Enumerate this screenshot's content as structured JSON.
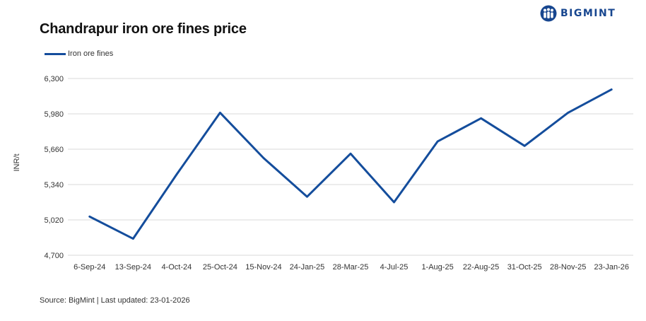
{
  "brand": {
    "name": "BIGMINT"
  },
  "chart_data": {
    "type": "line",
    "title": "Chandrapur iron ore fines price",
    "xlabel": "",
    "ylabel": "INR/t",
    "categories": [
      "6-Sep-24",
      "13-Sep-24",
      "4-Oct-24",
      "25-Oct-24",
      "15-Nov-24",
      "24-Jan-25",
      "28-Mar-25",
      "4-Jul-25",
      "1-Aug-25",
      "22-Aug-25",
      "31-Oct-25",
      "28-Nov-25",
      "23-Jan-26"
    ],
    "series": [
      {
        "name": "Iron ore fines",
        "color": "#144d9c",
        "values": [
          5050,
          4850,
          5430,
          5990,
          5580,
          5230,
          5620,
          5180,
          5730,
          5940,
          5690,
          5990,
          6200
        ]
      }
    ],
    "ylim": [
      4700,
      6300
    ],
    "yticks": [
      4700,
      5020,
      5340,
      5660,
      5980,
      6300
    ],
    "ytick_labels": [
      "4,700",
      "5,020",
      "5,340",
      "5,660",
      "5,980",
      "6,300"
    ],
    "grid": true,
    "legend": "top-left"
  },
  "footer": {
    "source": "Source: BigMint | Last updated: 23-01-2026"
  }
}
